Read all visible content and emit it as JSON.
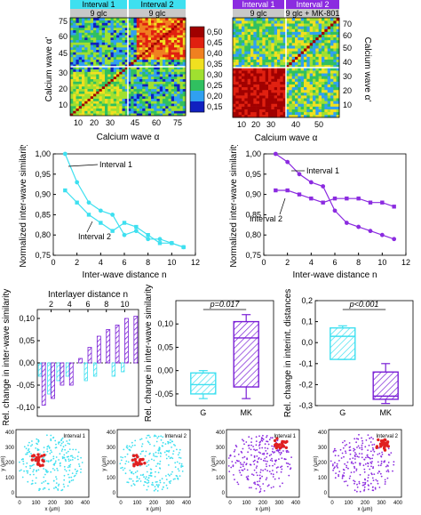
{
  "colors": {
    "cyan": "#3ee0f0",
    "purple": "#8b2be0",
    "hatch_purple": "#7a1fd6",
    "red_dot": "#e02020"
  },
  "colorbar": {
    "ticks": [
      "0,50",
      "0,45",
      "0,40",
      "0,35",
      "0,30",
      "0,25",
      "0,20",
      "0,15"
    ],
    "colors": [
      "#a00000",
      "#e02010",
      "#f08020",
      "#f0e020",
      "#a0e030",
      "#30c060",
      "#30a0f0",
      "#1020c0"
    ]
  },
  "heatmap_left": {
    "header": [
      "Interval 1",
      "Interval 2"
    ],
    "subheader": [
      "9 glc",
      "9 glc"
    ],
    "xlabel": "Calcium wave α",
    "ylabel": "Calcium wave α'",
    "xticks": [
      "10",
      "20",
      "30",
      "45",
      "60",
      "75"
    ],
    "yticks": [
      "10",
      "20",
      "30",
      "45",
      "60",
      "75"
    ]
  },
  "heatmap_right": {
    "header": [
      "Interval 1",
      "Interval 2"
    ],
    "subheader": [
      "9 glc",
      "9 glc + MK-801"
    ],
    "xlabel": "Calcium wave α",
    "ylabel": "Calcium wave α'",
    "xticks": [
      "10",
      "20",
      "30",
      "40",
      "50"
    ],
    "yticks": [
      "10",
      "20",
      "30",
      "40",
      "50",
      "60",
      "70"
    ]
  },
  "chart_data": [
    {
      "type": "line",
      "panel": "similarity-glc",
      "xlabel": "Inter-wave distance n",
      "ylabel": "Normalized inter-wave similarity",
      "xlim": [
        0,
        12
      ],
      "ylim": [
        0.75,
        1.0
      ],
      "xticks": [
        "0",
        "2",
        "4",
        "6",
        "8",
        "10",
        "12"
      ],
      "yticks": [
        "0,75",
        "0,80",
        "0,85",
        "0,90",
        "0,95",
        "1,00"
      ],
      "x": [
        1,
        2,
        3,
        4,
        5,
        6,
        7,
        8,
        9,
        10,
        11
      ],
      "series": [
        {
          "name": "Interval 1",
          "values": [
            1.0,
            0.93,
            0.88,
            0.86,
            0.85,
            0.8,
            0.81,
            0.79,
            0.79,
            0.78,
            0.77
          ]
        },
        {
          "name": "Interval 2",
          "values": [
            0.91,
            0.88,
            0.85,
            0.83,
            0.81,
            0.83,
            0.82,
            0.8,
            0.78,
            0.78,
            0.77
          ]
        }
      ],
      "annotations": [
        "Interval 1",
        "Interval 2"
      ]
    },
    {
      "type": "line",
      "panel": "similarity-mk",
      "xlabel": "Inter-wave distance n",
      "ylabel": "Normalized inter-wave similarity",
      "xlim": [
        0,
        12
      ],
      "ylim": [
        0.75,
        1.0
      ],
      "xticks": [
        "0",
        "2",
        "4",
        "6",
        "8",
        "10",
        "12"
      ],
      "yticks": [
        "0,75",
        "0,80",
        "0,85",
        "0,90",
        "0,95",
        "1,00"
      ],
      "x": [
        1,
        2,
        3,
        4,
        5,
        6,
        7,
        8,
        9,
        10,
        11
      ],
      "series": [
        {
          "name": "Interval 1",
          "values": [
            1.0,
            0.98,
            0.95,
            0.93,
            0.92,
            0.86,
            0.83,
            0.82,
            0.81,
            0.8,
            0.79
          ]
        },
        {
          "name": "Interval 2",
          "values": [
            0.91,
            0.91,
            0.9,
            0.89,
            0.88,
            0.89,
            0.89,
            0.89,
            0.88,
            0.88,
            0.87
          ]
        }
      ],
      "annotations": [
        "Interval 1",
        "Interval 2"
      ]
    },
    {
      "type": "bar",
      "panel": "interlayer-change",
      "xlabel": "Interlayer distance n",
      "ylabel": "Rel. change in inter-wave similarity",
      "xticks": [
        "2",
        "4",
        "6",
        "8",
        "10"
      ],
      "yticks": [
        "-0,10",
        "-0,05",
        "0,00",
        "0,05",
        "0,10"
      ],
      "ylim": [
        -0.12,
        0.12
      ],
      "categories": [
        1,
        2,
        3,
        4,
        5,
        6,
        7,
        8,
        9,
        10,
        11
      ],
      "series": [
        {
          "values": [
            -0.03,
            -0.07,
            -0.04,
            -0.03,
            0.0,
            -0.04,
            -0.03,
            0.0,
            -0.03,
            -0.02,
            0.0
          ]
        },
        {
          "values": [
            -0.095,
            -0.08,
            -0.05,
            -0.05,
            0.01,
            0.035,
            0.06,
            0.075,
            0.085,
            0.1,
            0.105
          ]
        }
      ]
    },
    {
      "type": "box",
      "panel": "box-similarity",
      "ylabel": "Rel. change in inter-wave similarity",
      "categories": [
        "G",
        "MK"
      ],
      "annotation": "p=0.017",
      "ylim": [
        -0.075,
        0.15
      ],
      "yticks": [
        "-0,05",
        "0,00",
        "0,05",
        "0,10"
      ],
      "boxes": [
        {
          "min": -0.06,
          "q1": -0.05,
          "median": -0.03,
          "q3": -0.005,
          "max": 0.0
        },
        {
          "min": -0.06,
          "q1": -0.035,
          "median": 0.07,
          "q3": 0.105,
          "max": 0.12
        }
      ]
    },
    {
      "type": "box",
      "panel": "box-distances",
      "ylabel": "Rel. change in interint. distances",
      "categories": [
        "G",
        "MK"
      ],
      "annotation": "p<0.001",
      "ylim": [
        -0.3,
        0.2
      ],
      "yticks": [
        "-0,3",
        "-0,2",
        "-0,1",
        "0,0",
        "0,1",
        "0,2"
      ],
      "boxes": [
        {
          "min": -0.08,
          "q1": -0.08,
          "median": 0.03,
          "q3": 0.07,
          "max": 0.08
        },
        {
          "min": -0.29,
          "q1": -0.27,
          "median": -0.255,
          "q3": -0.14,
          "max": -0.1
        }
      ]
    }
  ],
  "scatter_maps": {
    "titles": [
      "Interval 1",
      "Interval 2",
      "Interval 1",
      "Interval 2"
    ],
    "xlabel": "x (μm)",
    "ylabel": "y (μm)",
    "xticks": [
      "0",
      "100",
      "200",
      "300",
      "400"
    ],
    "yticks": [
      "0",
      "100",
      "200",
      "300",
      "400"
    ]
  }
}
